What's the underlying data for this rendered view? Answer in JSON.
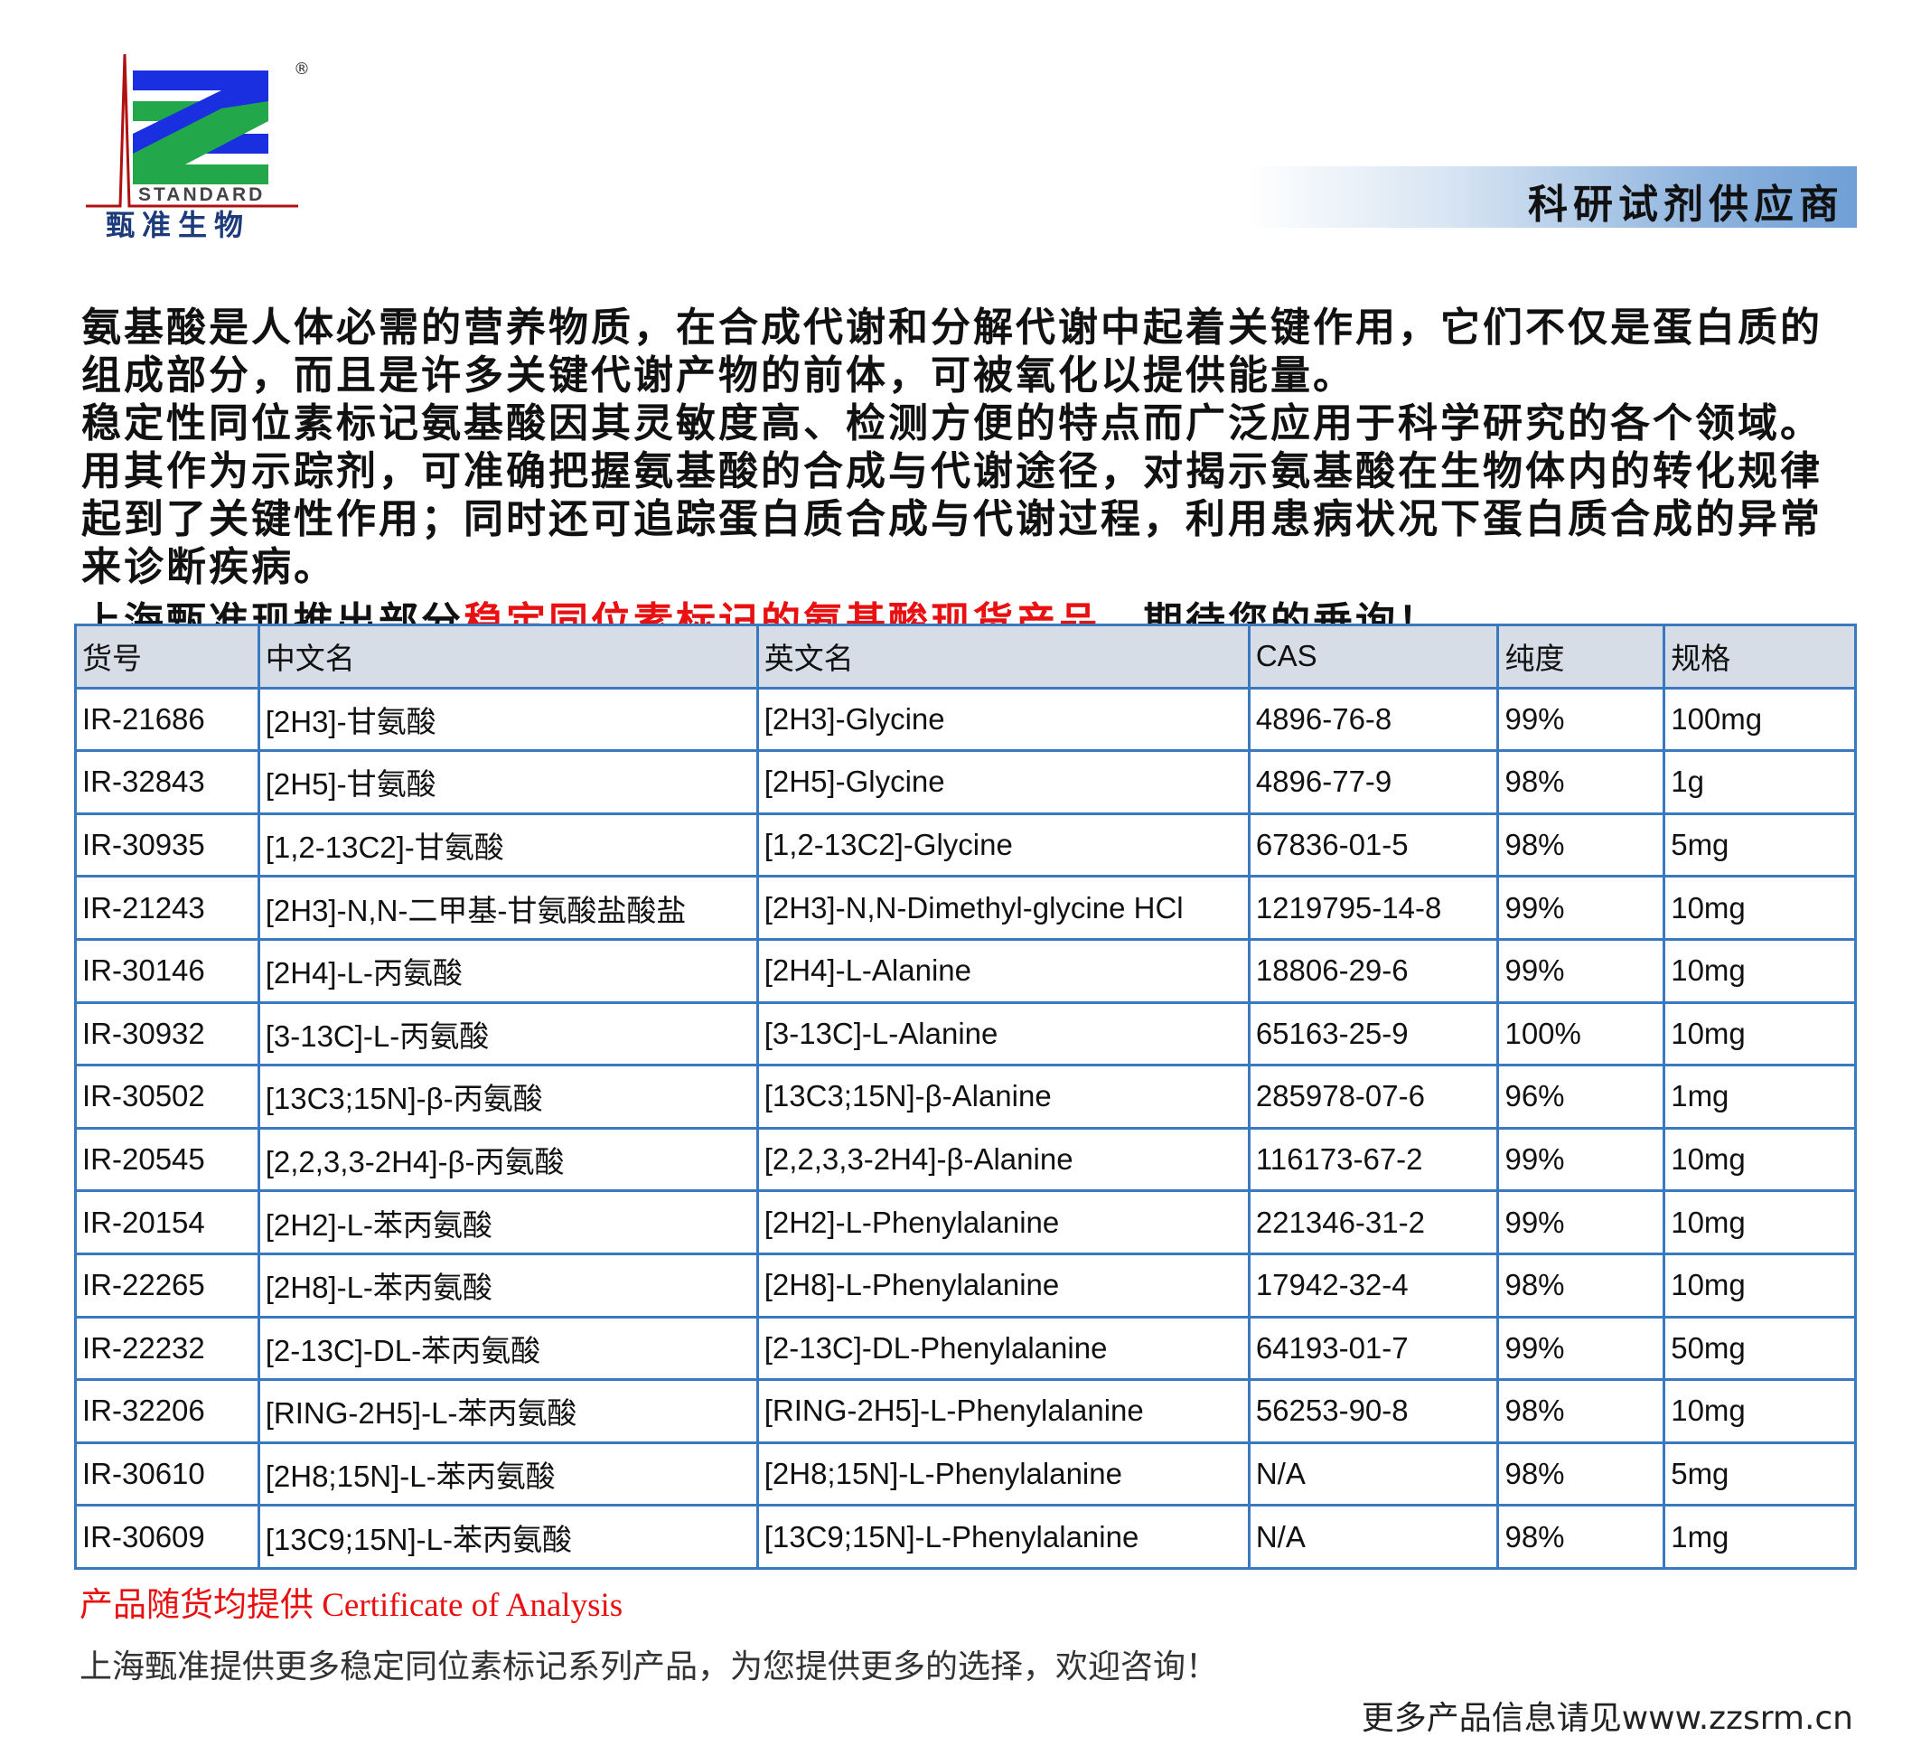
{
  "logo": {
    "brand_en": "STANDARD",
    "brand_cn": "甄准生物",
    "registered": "®",
    "colors": {
      "blue": "#1a2fe0",
      "green": "#22a84a",
      "red": "#b01010"
    }
  },
  "banner": {
    "text": "科研试剂供应商"
  },
  "intro": {
    "p1": "氨基酸是人体必需的营养物质，在合成代谢和分解代谢中起着关键作用，它们不仅是蛋白质的组成部分，而且是许多关键代谢产物的前体，可被氧化以提供能量。",
    "p2": "稳定性同位素标记氨基酸因其灵敏度高、检测方便的特点而广泛应用于科学研究的各个领域。用其作为示踪剂，可准确把握氨基酸的合成与代谢途径，对揭示氨基酸在生物体内的转化规律起到了关键性作用；同时还可追踪蛋白质合成与代谢过程，利用患病状况下蛋白质合成的异常来诊断疾病。",
    "p3_a": "上海甄准现推出部分",
    "p3_red": "稳定同位素标记的氨基酸现货产品",
    "p3_b": "，期待您的垂询！"
  },
  "table": {
    "headers": [
      "货号",
      "中文名",
      "英文名",
      "CAS",
      "纯度",
      "规格"
    ],
    "rows": [
      [
        "IR-21686",
        "[2H3]-甘氨酸",
        "[2H3]-Glycine",
        "4896-76-8",
        "99%",
        "100mg"
      ],
      [
        "IR-32843",
        "[2H5]-甘氨酸",
        "[2H5]-Glycine",
        "4896-77-9",
        "98%",
        "1g"
      ],
      [
        "IR-30935",
        "[1,2-13C2]-甘氨酸",
        "[1,2-13C2]-Glycine",
        "67836-01-5",
        "98%",
        "5mg"
      ],
      [
        "IR-21243",
        "[2H3]-N,N-二甲基-甘氨酸盐酸盐",
        "[2H3]-N,N-Dimethyl-glycine HCl",
        "1219795-14-8",
        "99%",
        "10mg"
      ],
      [
        "IR-30146",
        "[2H4]-L-丙氨酸",
        "[2H4]-L-Alanine",
        "18806-29-6",
        "99%",
        "10mg"
      ],
      [
        "IR-30932",
        "[3-13C]-L-丙氨酸",
        "[3-13C]-L-Alanine",
        "65163-25-9",
        "100%",
        "10mg"
      ],
      [
        "IR-30502",
        "[13C3;15N]-β-丙氨酸",
        "[13C3;15N]-β-Alanine",
        "285978-07-6",
        "96%",
        "1mg"
      ],
      [
        "IR-20545",
        "[2,2,3,3-2H4]-β-丙氨酸",
        "[2,2,3,3-2H4]-β-Alanine",
        "116173-67-2",
        "99%",
        "10mg"
      ],
      [
        "IR-20154",
        "[2H2]-L-苯丙氨酸",
        "[2H2]-L-Phenylalanine",
        "221346-31-2",
        "99%",
        "10mg"
      ],
      [
        "IR-22265",
        "[2H8]-L-苯丙氨酸",
        "[2H8]-L-Phenylalanine",
        "17942-32-4",
        "98%",
        "10mg"
      ],
      [
        "IR-22232",
        "[2-13C]-DL-苯丙氨酸",
        "[2-13C]-DL-Phenylalanine",
        "64193-01-7",
        "99%",
        "50mg"
      ],
      [
        "IR-32206",
        "[RING-2H5]-L-苯丙氨酸",
        "[RING-2H5]-L-Phenylalanine",
        "56253-90-8",
        "98%",
        "10mg"
      ],
      [
        "IR-30610",
        "[2H8;15N]-L-苯丙氨酸",
        "[2H8;15N]-L-Phenylalanine",
        "N/A",
        "98%",
        "5mg"
      ],
      [
        "IR-30609",
        "[13C9;15N]-L-苯丙氨酸",
        "[13C9;15N]-L-Phenylalanine",
        "N/A",
        "98%",
        "1mg"
      ]
    ]
  },
  "footer": {
    "coa": "产品随货均提供 Certificate of Analysis",
    "more": "上海甄准提供更多稳定同位素标记系列产品，为您提供更多的选择，欢迎咨询！",
    "website": "更多产品信息请见www.zzsrm.cn"
  }
}
